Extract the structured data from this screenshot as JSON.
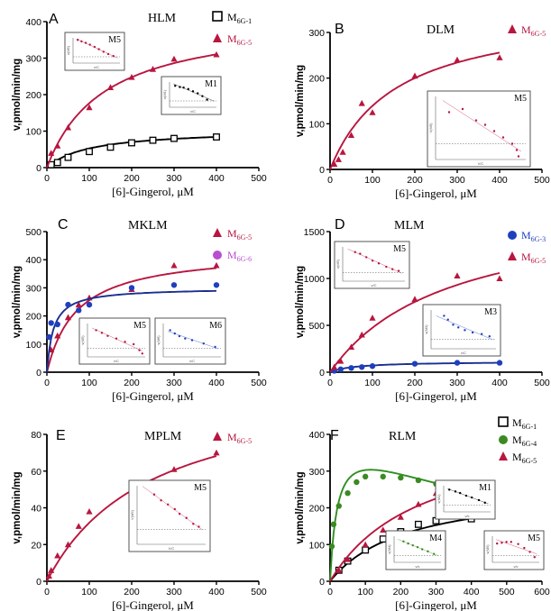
{
  "colors": {
    "M6G-1": "#000000",
    "M6G-3": "#1f3fbf",
    "M6G-4": "#3a8a22",
    "M6G-5": "#b8163f",
    "M6G-6": "#b84fd0",
    "blue_curve": "#1c2f8f",
    "green_curve": "#2f8f1f",
    "black_curve": "#000000",
    "red_curve": "#b8163f"
  },
  "chart_data": [
    {
      "panel": "A",
      "title": "HLM",
      "type": "scatter",
      "xlabel": "[6]-Gingerol, μM",
      "ylabel": "v,pmol/min/mg",
      "xlim": [
        0,
        500
      ],
      "ylim": [
        0,
        400
      ],
      "xticks": [
        0,
        100,
        200,
        300,
        400,
        500
      ],
      "yticks": [
        0,
        100,
        200,
        300,
        400
      ],
      "series": [
        {
          "name": "M6G-1",
          "marker": "square-open",
          "colorKey": "M6G-1",
          "curve": {
            "kind": "mm",
            "vmax": 105,
            "km": 100
          },
          "x": [
            10,
            25,
            50,
            100,
            150,
            200,
            250,
            300,
            400
          ],
          "y": [
            8,
            14,
            28,
            44,
            56,
            68,
            75,
            80,
            84
          ]
        },
        {
          "name": "M6G-5",
          "marker": "triangle",
          "colorKey": "M6G-5",
          "curve": {
            "kind": "mm",
            "vmax": 415,
            "km": 135
          },
          "x": [
            10,
            25,
            50,
            100,
            150,
            200,
            250,
            300,
            400
          ],
          "y": [
            40,
            60,
            110,
            165,
            220,
            248,
            270,
            298,
            310
          ]
        }
      ],
      "insets": [
        {
          "label": "M5",
          "xlabel": "v/C",
          "ylabel": "v(M5)",
          "colorKey": "M6G-5",
          "pts": [
            [
              0.1,
              0.92
            ],
            [
              0.18,
              0.86
            ],
            [
              0.27,
              0.8
            ],
            [
              0.36,
              0.73
            ],
            [
              0.46,
              0.64
            ],
            [
              0.55,
              0.55
            ],
            [
              0.65,
              0.45
            ],
            [
              0.75,
              0.36
            ],
            [
              0.86,
              0.28
            ]
          ]
        },
        {
          "label": "M1",
          "xlabel": "v/C",
          "ylabel": "v(M1)",
          "colorKey": "M6G-1",
          "pts": [
            [
              0.12,
              0.85
            ],
            [
              0.22,
              0.8
            ],
            [
              0.3,
              0.78
            ],
            [
              0.4,
              0.72
            ],
            [
              0.5,
              0.63
            ],
            [
              0.6,
              0.55
            ],
            [
              0.7,
              0.44
            ],
            [
              0.8,
              0.3
            ]
          ]
        }
      ]
    },
    {
      "panel": "B",
      "title": "DLM",
      "type": "scatter",
      "xlabel": "[6]-Gingerol, μM",
      "ylabel": "v,pmol/min/mg",
      "xlim": [
        0,
        500
      ],
      "ylim": [
        0,
        300
      ],
      "xticks": [
        0,
        100,
        200,
        300,
        400,
        500
      ],
      "yticks": [
        0,
        100,
        200,
        300
      ],
      "series": [
        {
          "name": "M6G-5",
          "marker": "triangle",
          "colorKey": "M6G-5",
          "curve": {
            "kind": "mm",
            "vmax": 355,
            "km": 155
          },
          "x": [
            10,
            20,
            30,
            50,
            75,
            100,
            200,
            300,
            400
          ],
          "y": [
            12,
            22,
            38,
            75,
            145,
            125,
            205,
            240,
            245
          ]
        }
      ],
      "insets": [
        {
          "label": "M5",
          "xlabel": "V/C",
          "ylabel": "V(M5)",
          "colorKey": "M6G-5",
          "pts": [
            [
              0.15,
              0.75
            ],
            [
              0.3,
              0.8
            ],
            [
              0.45,
              0.62
            ],
            [
              0.55,
              0.55
            ],
            [
              0.65,
              0.45
            ],
            [
              0.75,
              0.35
            ],
            [
              0.85,
              0.25
            ],
            [
              0.9,
              0.15
            ],
            [
              0.92,
              0.05
            ]
          ]
        }
      ]
    },
    {
      "panel": "C",
      "title": "MKLM",
      "type": "scatter",
      "xlabel": "[6]-Gingerol, μM",
      "ylabel": "v,pmol/min/mg",
      "xlim": [
        0,
        500
      ],
      "ylim": [
        0,
        500
      ],
      "xticks": [
        0,
        100,
        200,
        300,
        400,
        500
      ],
      "yticks": [
        0,
        100,
        200,
        300,
        400,
        500
      ],
      "series": [
        {
          "name": "M6G-5",
          "marker": "triangle",
          "colorKey": "M6G-5",
          "curve": {
            "kind": "mm",
            "vmax": 435,
            "km": 70
          },
          "x": [
            10,
            25,
            50,
            75,
            100,
            200,
            300,
            400
          ],
          "y": [
            80,
            130,
            195,
            240,
            265,
            295,
            380,
            380
          ]
        },
        {
          "name": "M6G-6",
          "marker": "circle",
          "colorKey": "M6G-3",
          "curveColorKey": "blue_curve",
          "curve": {
            "kind": "mm",
            "vmax": 300,
            "km": 15
          },
          "x": [
            5,
            10,
            25,
            50,
            75,
            100,
            200,
            300,
            400
          ],
          "y": [
            125,
            175,
            170,
            240,
            220,
            240,
            300,
            310,
            310
          ]
        }
      ],
      "insets": [
        {
          "label": "M5",
          "xlabel": "v/C",
          "ylabel": "v(M5)",
          "colorKey": "M6G-5",
          "pts": [
            [
              0.15,
              0.8
            ],
            [
              0.25,
              0.72
            ],
            [
              0.35,
              0.63
            ],
            [
              0.5,
              0.55
            ],
            [
              0.65,
              0.45
            ],
            [
              0.8,
              0.38
            ],
            [
              0.9,
              0.2
            ],
            [
              0.95,
              0.1
            ]
          ]
        },
        {
          "label": "M6",
          "xlabel": "v/C",
          "ylabel": "v(M6)",
          "colorKey": "M6G-3",
          "pts": [
            [
              0.12,
              0.8
            ],
            [
              0.2,
              0.7
            ],
            [
              0.28,
              0.62
            ],
            [
              0.38,
              0.55
            ],
            [
              0.5,
              0.5
            ],
            [
              0.7,
              0.4
            ],
            [
              0.9,
              0.3
            ]
          ]
        }
      ]
    },
    {
      "panel": "D",
      "title": "MLM",
      "type": "scatter",
      "xlabel": "[6]-Gingerol, μM",
      "ylabel": "v,pmol/min/mg",
      "xlim": [
        0,
        500
      ],
      "ylim": [
        0,
        1500
      ],
      "xticks": [
        0,
        100,
        200,
        300,
        400,
        500
      ],
      "yticks": [
        0,
        500,
        1000,
        1500
      ],
      "series": [
        {
          "name": "M6G-3",
          "marker": "circle",
          "colorKey": "M6G-3",
          "curveColorKey": "blue_curve",
          "curve": {
            "kind": "mm",
            "vmax": 115,
            "km": 60
          },
          "x": [
            10,
            25,
            50,
            75,
            100,
            200,
            300,
            400
          ],
          "y": [
            15,
            30,
            45,
            55,
            65,
            90,
            100,
            100
          ]
        },
        {
          "name": "M6G-5",
          "marker": "triangle",
          "colorKey": "M6G-5",
          "curve": {
            "kind": "mm",
            "vmax": 1800,
            "km": 280
          },
          "x": [
            10,
            25,
            50,
            75,
            100,
            200,
            300,
            400
          ],
          "y": [
            55,
            120,
            270,
            400,
            580,
            780,
            1030,
            1000
          ]
        }
      ],
      "insets": [
        {
          "label": "M5",
          "xlabel": "v/C",
          "ylabel": "v(M5)",
          "colorKey": "M6G-5",
          "pts": [
            [
              0.2,
              0.85
            ],
            [
              0.28,
              0.8
            ],
            [
              0.38,
              0.7
            ],
            [
              0.48,
              0.6
            ],
            [
              0.58,
              0.52
            ],
            [
              0.7,
              0.42
            ],
            [
              0.8,
              0.35
            ],
            [
              0.9,
              0.3
            ]
          ]
        },
        {
          "label": "M3",
          "xlabel": "v/C",
          "ylabel": "v(M3)",
          "colorKey": "M6G-3",
          "pts": [
            [
              0.2,
              0.85
            ],
            [
              0.26,
              0.75
            ],
            [
              0.34,
              0.62
            ],
            [
              0.42,
              0.55
            ],
            [
              0.52,
              0.48
            ],
            [
              0.64,
              0.42
            ],
            [
              0.78,
              0.38
            ],
            [
              0.9,
              0.32
            ]
          ]
        }
      ]
    },
    {
      "panel": "E",
      "title": "MPLM",
      "type": "scatter",
      "xlabel": "[6]-Gingerol, μM",
      "ylabel": "v,pmol/min/mg",
      "xlim": [
        0,
        500
      ],
      "ylim": [
        0,
        80
      ],
      "xticks": [
        0,
        100,
        200,
        300,
        400,
        500
      ],
      "yticks": [
        0,
        20,
        40,
        60,
        80
      ],
      "series": [
        {
          "name": "M6G-5",
          "marker": "triangle",
          "colorKey": "M6G-5",
          "curve": {
            "kind": "mm",
            "vmax": 110,
            "km": 245
          },
          "x": [
            5,
            10,
            25,
            50,
            75,
            100,
            200,
            300,
            400
          ],
          "y": [
            3,
            6,
            14,
            20,
            30,
            38,
            48,
            61,
            70
          ]
        }
      ],
      "insets": [
        {
          "label": "M5",
          "xlabel": "V/C",
          "ylabel": "V(M5)",
          "colorKey": "M6G-5",
          "pts": [
            [
              0.25,
              0.85
            ],
            [
              0.35,
              0.75
            ],
            [
              0.45,
              0.68
            ],
            [
              0.55,
              0.6
            ],
            [
              0.62,
              0.52
            ],
            [
              0.72,
              0.45
            ],
            [
              0.82,
              0.35
            ],
            [
              0.9,
              0.3
            ]
          ]
        }
      ]
    },
    {
      "panel": "F",
      "title": "RLM",
      "type": "scatter",
      "xlabel": "[6]-Gingerol, μM",
      "ylabel": "v,pmol/min/mg",
      "xlim": [
        0,
        600
      ],
      "ylim": [
        0,
        400
      ],
      "xticks": [
        0,
        100,
        200,
        300,
        400,
        500,
        600
      ],
      "yticks": [
        0,
        100,
        200,
        300,
        400
      ],
      "series": [
        {
          "name": "M6G-1",
          "marker": "square-open",
          "colorKey": "M6G-1",
          "curve": {
            "kind": "mm",
            "vmax": 265,
            "km": 220
          },
          "x": [
            25,
            50,
            100,
            150,
            200,
            250,
            300,
            400
          ],
          "y": [
            30,
            55,
            85,
            115,
            135,
            155,
            165,
            170
          ]
        },
        {
          "name": "M6G-4",
          "marker": "circle",
          "colorKey": "M6G-4",
          "curveColorKey": "green_curve",
          "curve": {
            "kind": "si",
            "vmax": 420,
            "km": 22,
            "ki": 600
          },
          "x": [
            5,
            10,
            25,
            50,
            75,
            100,
            150,
            200,
            250,
            300,
            400
          ],
          "y": [
            95,
            155,
            205,
            240,
            270,
            285,
            285,
            282,
            275,
            265,
            260
          ]
        },
        {
          "name": "M6G-5",
          "marker": "triangle",
          "colorKey": "M6G-5",
          "curve": {
            "kind": "mm",
            "vmax": 420,
            "km": 260
          },
          "x": [
            25,
            50,
            100,
            150,
            200,
            250,
            300,
            400
          ],
          "y": [
            30,
            60,
            100,
            140,
            175,
            210,
            240,
            245
          ]
        }
      ],
      "insets": [
        {
          "label": "M1",
          "xlabel": "v/c",
          "ylabel": "v(M1)",
          "colorKey": "M6G-1",
          "pts": [
            [
              0.12,
              0.85
            ],
            [
              0.25,
              0.78
            ],
            [
              0.35,
              0.72
            ],
            [
              0.48,
              0.62
            ],
            [
              0.6,
              0.55
            ],
            [
              0.75,
              0.45
            ],
            [
              0.88,
              0.35
            ]
          ]
        },
        {
          "label": "M4",
          "xlabel": "v/c",
          "ylabel": "v(M4)",
          "colorKey": "M6G-4",
          "pts": [
            [
              0.2,
              0.8
            ],
            [
              0.3,
              0.72
            ],
            [
              0.4,
              0.65
            ],
            [
              0.5,
              0.58
            ],
            [
              0.6,
              0.5
            ],
            [
              0.72,
              0.42
            ],
            [
              0.85,
              0.32
            ]
          ]
        },
        {
          "label": "M5",
          "xlabel": "v/c",
          "ylabel": "v(M5)",
          "colorKey": "M6G-5",
          "pts": [
            [
              0.1,
              0.72
            ],
            [
              0.2,
              0.75
            ],
            [
              0.3,
              0.78
            ],
            [
              0.4,
              0.78
            ],
            [
              0.55,
              0.7
            ],
            [
              0.68,
              0.55
            ],
            [
              0.8,
              0.4
            ],
            [
              0.9,
              0.2
            ]
          ]
        }
      ]
    }
  ]
}
